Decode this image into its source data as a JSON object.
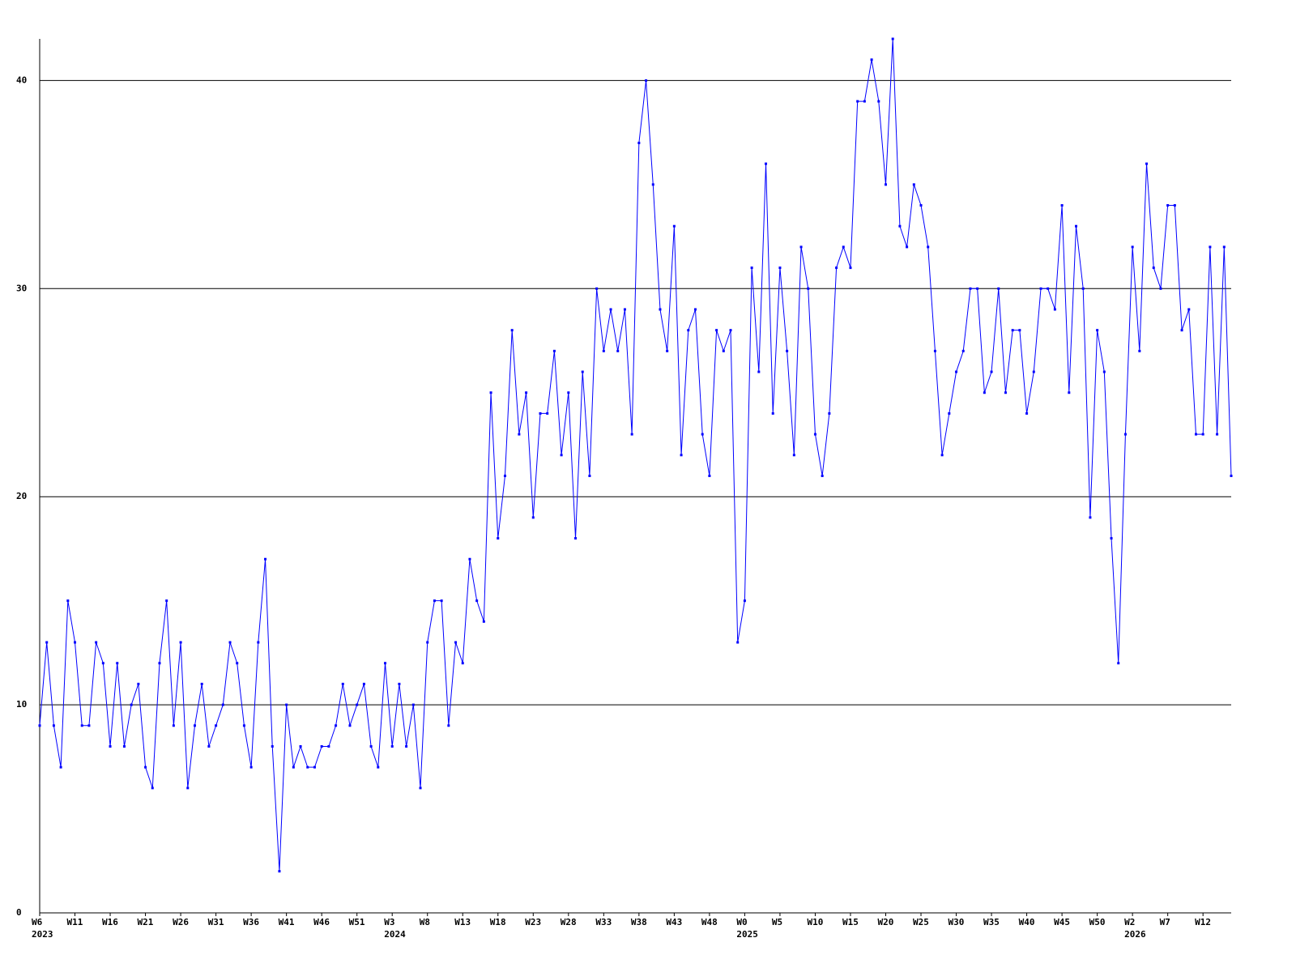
{
  "chart_data": {
    "type": "line",
    "categories": [
      "W6",
      null,
      null,
      null,
      null,
      "W11",
      null,
      null,
      null,
      null,
      "W16",
      null,
      null,
      null,
      null,
      "W21",
      null,
      null,
      null,
      null,
      "W26",
      null,
      null,
      null,
      null,
      "W31",
      null,
      null,
      null,
      null,
      "W36",
      null,
      null,
      null,
      null,
      "W41",
      null,
      null,
      null,
      null,
      "W46",
      null,
      null,
      null,
      null,
      "W51",
      null,
      null,
      null,
      null,
      "W3",
      null,
      null,
      null,
      null,
      "W8",
      null,
      null,
      null,
      null,
      "W13",
      null,
      null,
      null,
      null,
      "W18",
      null,
      null,
      null,
      null,
      "W23",
      null,
      null,
      null,
      null,
      "W28",
      null,
      null,
      null,
      null,
      "W33",
      null,
      null,
      null,
      null,
      "W38",
      null,
      null,
      null,
      null,
      "W43",
      null,
      null,
      null,
      null,
      "W48",
      null,
      null,
      null,
      null,
      "W0",
      null,
      null,
      null,
      null,
      "W5",
      null,
      null,
      null,
      null,
      "W10",
      null,
      null,
      null,
      null,
      "W15",
      null,
      null,
      null,
      null,
      "W20",
      null,
      null,
      null,
      null,
      "W25",
      null,
      null,
      null,
      null,
      "W30",
      null,
      null,
      null,
      null,
      "W35",
      null,
      null,
      null,
      null,
      "W40",
      null,
      null,
      null,
      null,
      "W45",
      null,
      null,
      null,
      null,
      "W50",
      null,
      null,
      null,
      null,
      "W2",
      null,
      null,
      null,
      null,
      "W7",
      null,
      null,
      null,
      null,
      "W12",
      null,
      null,
      null,
      null
    ],
    "category_years": [
      "2023",
      null,
      null,
      null,
      null,
      null,
      null,
      null,
      null,
      null,
      null,
      null,
      null,
      null,
      null,
      null,
      null,
      null,
      null,
      null,
      null,
      null,
      null,
      null,
      null,
      null,
      null,
      null,
      null,
      null,
      null,
      null,
      null,
      null,
      null,
      null,
      null,
      null,
      null,
      null,
      null,
      null,
      null,
      null,
      null,
      null,
      null,
      null,
      null,
      null,
      "2024",
      null,
      null,
      null,
      null,
      null,
      null,
      null,
      null,
      null,
      null,
      null,
      null,
      null,
      null,
      null,
      null,
      null,
      null,
      null,
      null,
      null,
      null,
      null,
      null,
      null,
      null,
      null,
      null,
      null,
      null,
      null,
      null,
      null,
      null,
      null,
      null,
      null,
      null,
      null,
      null,
      null,
      null,
      null,
      null,
      null,
      null,
      null,
      null,
      null,
      "2025",
      null,
      null,
      null,
      null,
      null,
      null,
      null,
      null,
      null,
      null,
      null,
      null,
      null,
      null,
      null,
      null,
      null,
      null,
      null,
      null,
      null,
      null,
      null,
      null,
      null,
      null,
      null,
      null,
      null,
      null,
      null,
      null,
      null,
      null,
      null,
      null,
      null,
      null,
      null,
      null,
      null,
      null,
      null,
      null,
      null,
      null,
      null,
      null,
      null,
      null,
      null,
      null,
      null,
      null,
      "2026",
      null,
      null,
      null,
      null,
      null,
      null,
      null,
      null,
      null,
      null,
      null,
      null,
      null,
      null
    ],
    "series": [
      {
        "color": "#0000ff",
        "values": [
          9,
          13,
          9,
          7,
          15,
          13,
          9,
          9,
          13,
          12,
          8,
          12,
          8,
          10,
          11,
          7,
          6,
          12,
          15,
          9,
          13,
          6,
          9,
          11,
          8,
          9,
          10,
          13,
          12,
          9,
          7,
          13,
          17,
          8,
          2,
          10,
          7,
          8,
          7,
          7,
          8,
          8,
          9,
          11,
          9,
          10,
          11,
          8,
          7,
          12,
          8,
          11,
          8,
          10,
          6,
          13,
          15,
          15,
          9,
          13,
          12,
          17,
          15,
          14,
          25,
          18,
          21,
          28,
          23,
          25,
          19,
          24,
          24,
          27,
          22,
          25,
          18,
          26,
          21,
          30,
          27,
          29,
          27,
          29,
          23,
          37,
          40,
          35,
          29,
          27,
          33,
          22,
          28,
          29,
          23,
          21,
          28,
          27,
          28,
          13,
          15,
          31,
          26,
          36,
          24,
          31,
          27,
          22,
          32,
          30,
          23,
          21,
          24,
          31,
          32,
          31,
          39,
          39,
          41,
          39,
          35,
          42,
          33,
          32,
          35,
          34,
          32,
          27,
          22,
          24,
          26,
          27,
          30,
          30,
          25,
          26,
          30,
          25,
          28,
          28,
          24,
          26,
          30,
          30,
          29,
          34,
          25,
          33,
          30,
          19,
          28,
          26,
          18,
          12,
          23,
          32,
          27,
          36,
          31,
          30,
          34,
          34,
          28,
          29,
          23,
          23,
          32,
          23,
          32,
          21
        ]
      }
    ],
    "ylim": [
      0,
      42
    ],
    "yticks": [
      0,
      10,
      20,
      30,
      40
    ],
    "grid": true
  }
}
